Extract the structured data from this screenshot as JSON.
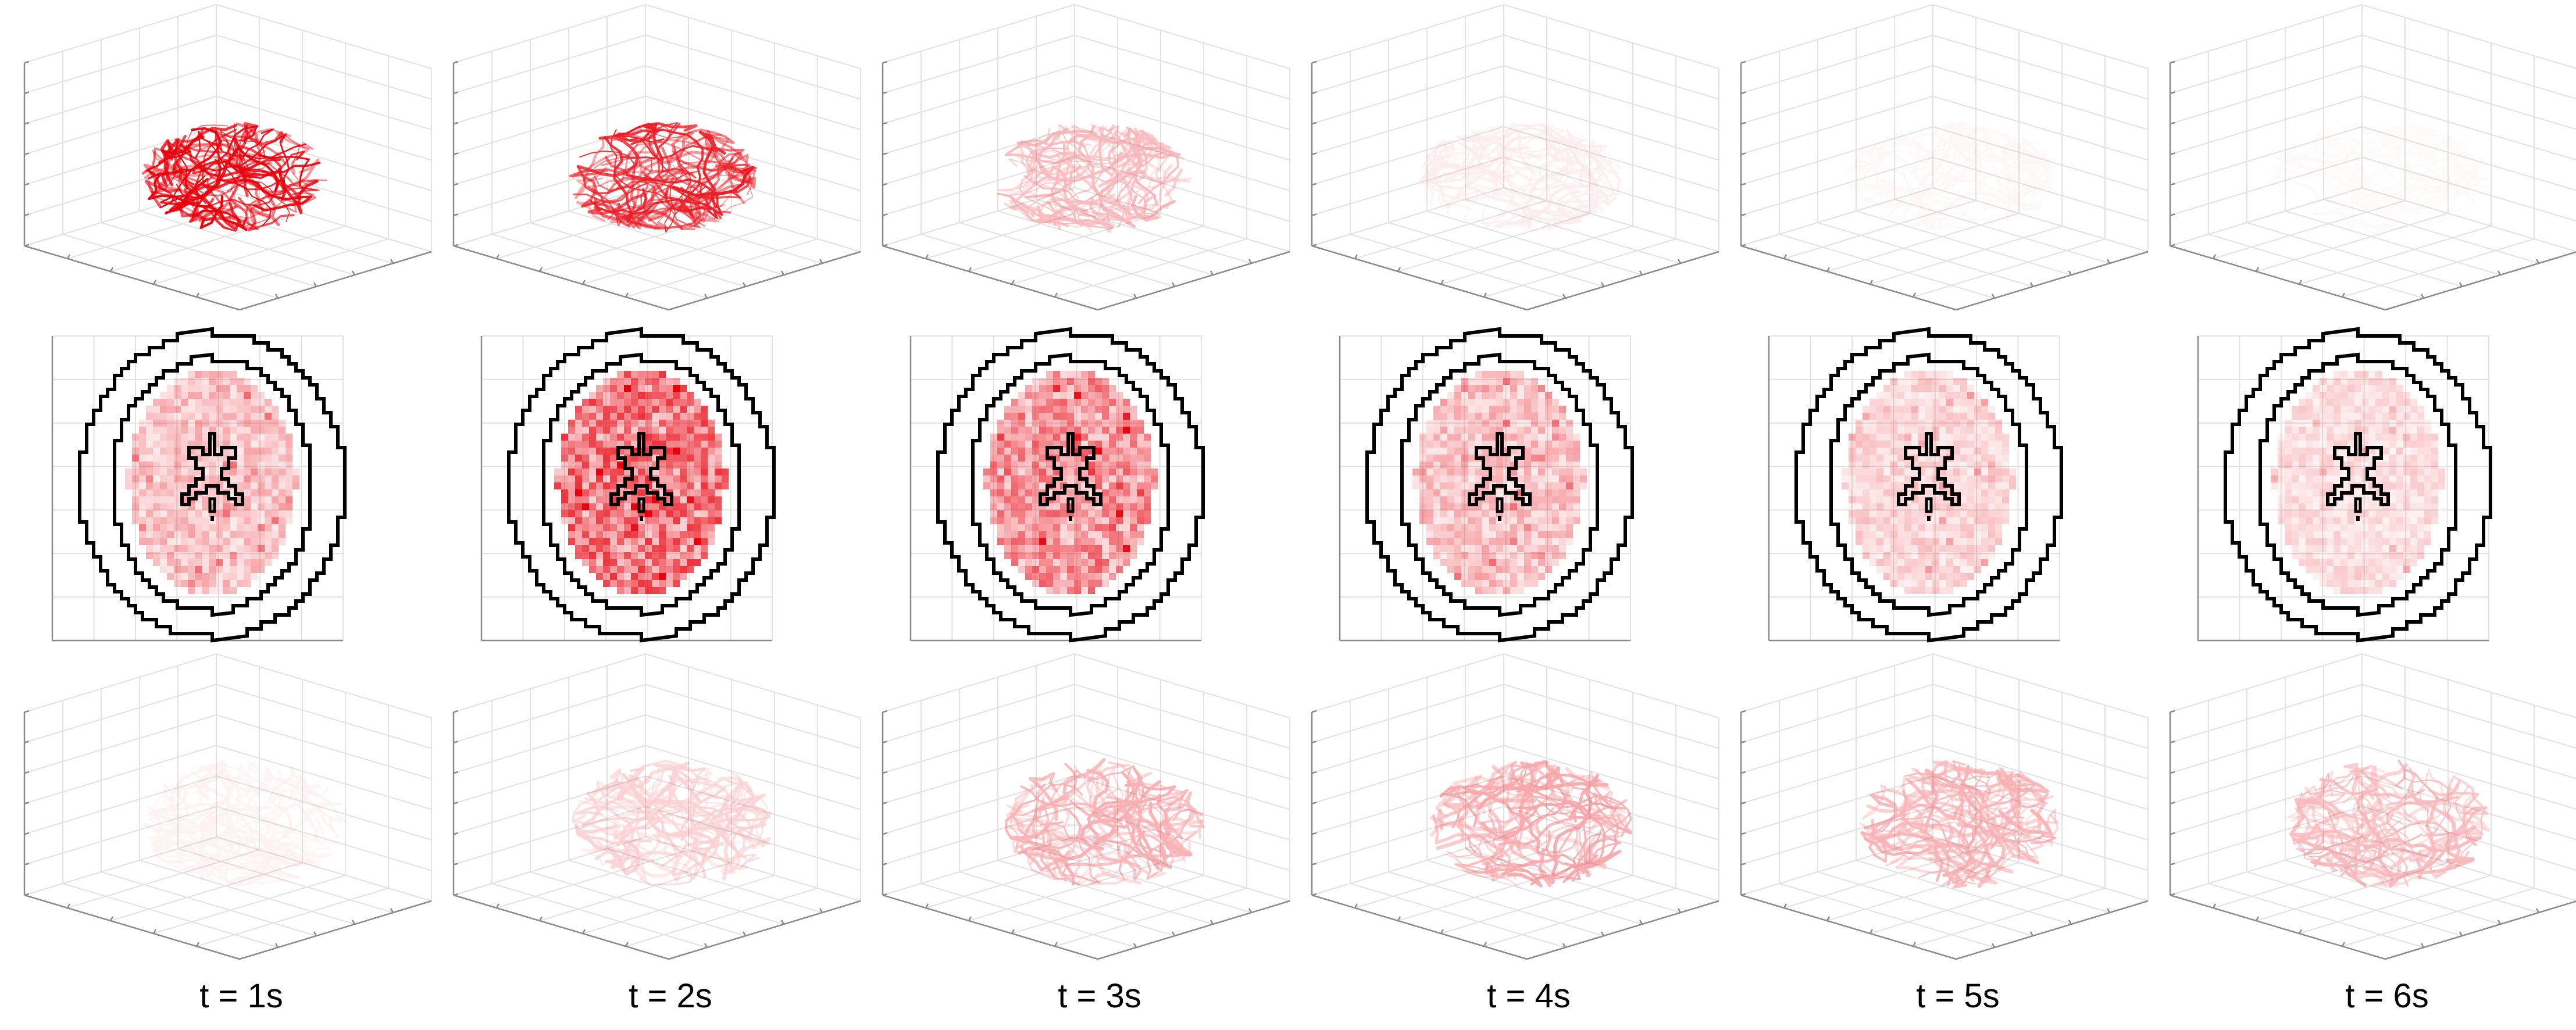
{
  "columns": [
    {
      "label": "t = 1s",
      "time": 1,
      "arterial_intensity": 1.0,
      "perfusion_intensity": 0.32,
      "venous_intensity": 0.05
    },
    {
      "label": "t = 2s",
      "time": 2,
      "arterial_intensity": 0.88,
      "perfusion_intensity": 0.7,
      "venous_intensity": 0.18
    },
    {
      "label": "t = 3s",
      "time": 3,
      "arterial_intensity": 0.28,
      "perfusion_intensity": 0.55,
      "venous_intensity": 0.3
    },
    {
      "label": "t = 4s",
      "time": 4,
      "arterial_intensity": 0.07,
      "perfusion_intensity": 0.32,
      "venous_intensity": 0.34
    },
    {
      "label": "t = 5s",
      "time": 5,
      "arterial_intensity": 0.03,
      "perfusion_intensity": 0.22,
      "venous_intensity": 0.3
    },
    {
      "label": "t = 6s",
      "time": 6,
      "arterial_intensity": 0.02,
      "perfusion_intensity": 0.18,
      "venous_intensity": 0.27
    }
  ],
  "rows": [
    "arterial-vessels-3d",
    "axial-slice-perfusion",
    "venous-vessels-3d"
  ],
  "colors": {
    "vessel": "#e8000b",
    "perfusion": "#e8000b",
    "outline": "#000000",
    "grid": "#e2e2e2",
    "axis": "#8a8a8a"
  }
}
